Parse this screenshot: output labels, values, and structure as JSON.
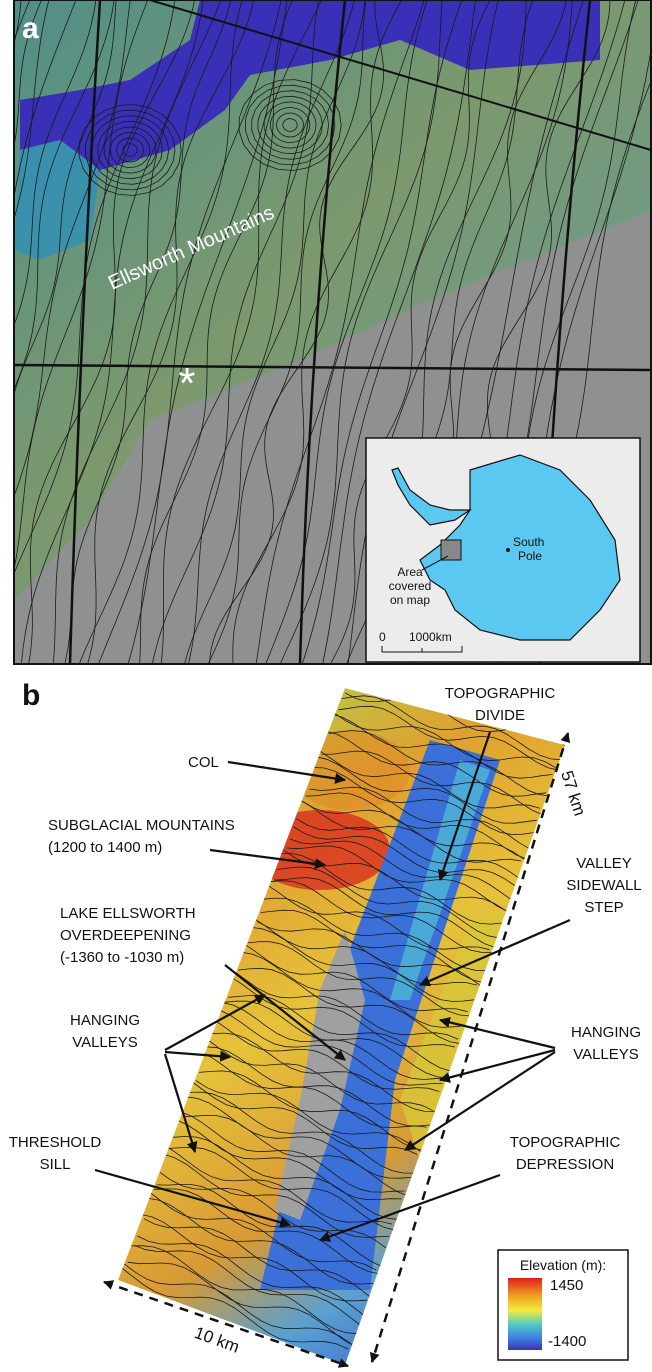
{
  "panel_a": {
    "label": "a",
    "region_label": "Ellsworth Mountains",
    "marker": "*",
    "inset": {
      "pole_label": [
        "South",
        "Pole"
      ],
      "area_label": [
        "Area",
        "covered",
        "on map"
      ],
      "scale_labels": [
        "0",
        "1000km"
      ]
    }
  },
  "panel_b": {
    "label": "b",
    "annotations": {
      "topographic_divide": [
        "TOPOGRAPHIC",
        "DIVIDE"
      ],
      "col": [
        "COL"
      ],
      "subglacial_mountains": [
        "SUBGLACIAL MOUNTAINS",
        "(1200 to 1400 m)"
      ],
      "lake_ellsworth": [
        "LAKE ELLSWORTH",
        "OVERDEEPENING",
        "(-1360 to -1030 m)"
      ],
      "valley_sidewall_step": [
        "VALLEY",
        "SIDEWALL",
        "STEP"
      ],
      "hanging_valleys_left": [
        "HANGING",
        "VALLEYS"
      ],
      "hanging_valleys_right": [
        "HANGING",
        "VALLEYS"
      ],
      "threshold_sill": [
        "THRESHOLD",
        "SILL"
      ],
      "topographic_depression": [
        "TOPOGRAPHIC",
        "DEPRESSION"
      ]
    },
    "dimensions": {
      "length": "57 km",
      "width": "10 km"
    },
    "legend": {
      "title": "Elevation (m):",
      "max": "1450",
      "min": "-1400"
    }
  }
}
